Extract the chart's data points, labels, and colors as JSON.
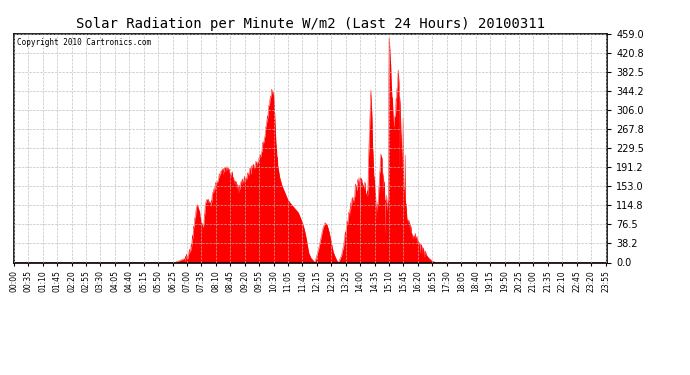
{
  "title": "Solar Radiation per Minute W/m2 (Last 24 Hours) 20100311",
  "copyright_text": "Copyright 2010 Cartronics.com",
  "y_max": 459.0,
  "y_ticks": [
    0.0,
    38.2,
    76.5,
    114.8,
    153.0,
    191.2,
    229.5,
    267.8,
    306.0,
    344.2,
    382.5,
    420.8,
    459.0
  ],
  "fill_color": "#ff0000",
  "line_color": "#ff0000",
  "bg_color": "#ffffff",
  "grid_color": "#aaaaaa",
  "dashed_line_color": "#ff0000",
  "title_color": "#000000",
  "border_color": "#000000",
  "x_tick_step": 35
}
